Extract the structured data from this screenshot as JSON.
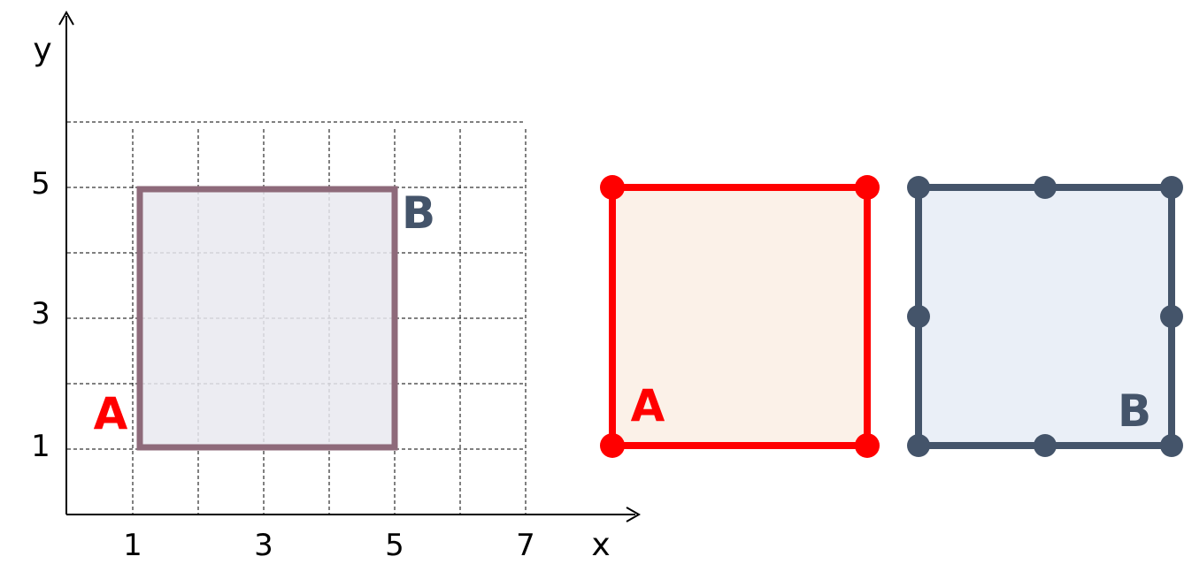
{
  "axes": {
    "x_label": "x",
    "y_label": "y",
    "x_ticks": [
      "1",
      "3",
      "5",
      "7"
    ],
    "y_ticks": [
      "1",
      "3",
      "5"
    ]
  },
  "grid": {
    "x_range": [
      0,
      7
    ],
    "y_range": [
      0,
      6
    ],
    "style": "dashed"
  },
  "overlay_square": {
    "corner_a": {
      "label": "A",
      "x": 1,
      "y": 1
    },
    "corner_b": {
      "label": "B",
      "x": 5,
      "y": 5
    }
  },
  "panel_a": {
    "label": "A",
    "points_per_side": 2,
    "stroke": "#ff0000",
    "fill": "#fbf1e8"
  },
  "panel_b": {
    "label": "B",
    "points_per_side": 3,
    "stroke": "#44546a",
    "fill": "#eaeff7"
  },
  "colors": {
    "overlay_fill": "#e9e9f0",
    "overlay_stroke": "#8e6a7a",
    "label_a": "#ff0000",
    "label_b": "#44546a"
  }
}
